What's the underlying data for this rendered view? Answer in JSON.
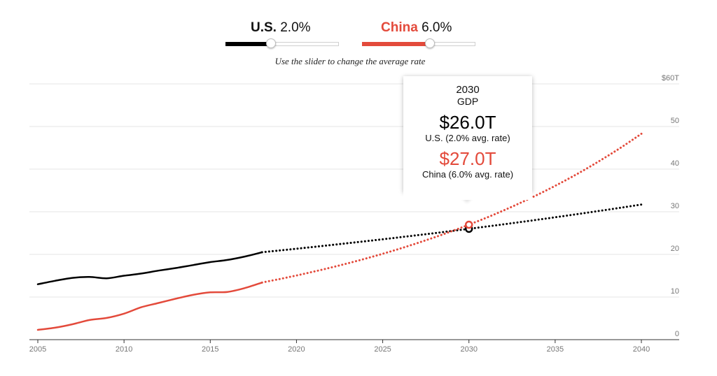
{
  "controls": {
    "us": {
      "name": "U.S.",
      "rate": "2.0%",
      "rate_value": 2.0,
      "slider_max": 5.0,
      "color": "#000000"
    },
    "china": {
      "name": "China",
      "rate": "6.0%",
      "rate_value": 6.0,
      "slider_max": 10.0,
      "color": "#e34a3b"
    },
    "instruction": "Use the slider to change the average rate"
  },
  "tooltip": {
    "year": "2030",
    "metric": "GDP",
    "us_value": "$26.0T",
    "us_label": "U.S. (2.0% avg. rate)",
    "china_value": "$27.0T",
    "china_label": "China (6.0% avg. rate)"
  },
  "chart_data": {
    "type": "line",
    "title": "",
    "xlabel": "",
    "ylabel": "",
    "xlim": [
      2005,
      2040
    ],
    "ylim": [
      0,
      60
    ],
    "x_ticks": [
      "2005",
      "2010",
      "2015",
      "2020",
      "2025",
      "2030",
      "2035",
      "2040"
    ],
    "x_tick_values": [
      2005,
      2010,
      2015,
      2020,
      2025,
      2030,
      2035,
      2040
    ],
    "y_ticks": [
      "0",
      "10",
      "20",
      "30",
      "40",
      "50",
      "$60T"
    ],
    "y_tick_values": [
      0,
      10,
      20,
      30,
      40,
      50,
      60
    ],
    "grid": true,
    "highlight_year": 2030,
    "series": [
      {
        "name": "U.S.",
        "color": "#000000",
        "historical": {
          "x": [
            2005,
            2006,
            2007,
            2008,
            2009,
            2010,
            2011,
            2012,
            2013,
            2014,
            2015,
            2016,
            2017,
            2018
          ],
          "y": [
            13.0,
            13.8,
            14.5,
            14.7,
            14.4,
            15.0,
            15.5,
            16.2,
            16.8,
            17.5,
            18.2,
            18.7,
            19.5,
            20.5
          ]
        },
        "projection": {
          "from_year": 2018,
          "to_year": 2040,
          "start": 20.5,
          "rate": 0.02
        }
      },
      {
        "name": "China",
        "color": "#e34a3b",
        "historical": {
          "x": [
            2005,
            2006,
            2007,
            2008,
            2009,
            2010,
            2011,
            2012,
            2013,
            2014,
            2015,
            2016,
            2017,
            2018
          ],
          "y": [
            2.3,
            2.8,
            3.6,
            4.6,
            5.1,
            6.1,
            7.6,
            8.6,
            9.6,
            10.5,
            11.1,
            11.2,
            12.1,
            13.4
          ]
        },
        "projection": {
          "from_year": 2018,
          "to_year": 2040,
          "start": 13.4,
          "rate": 0.06
        }
      }
    ]
  }
}
